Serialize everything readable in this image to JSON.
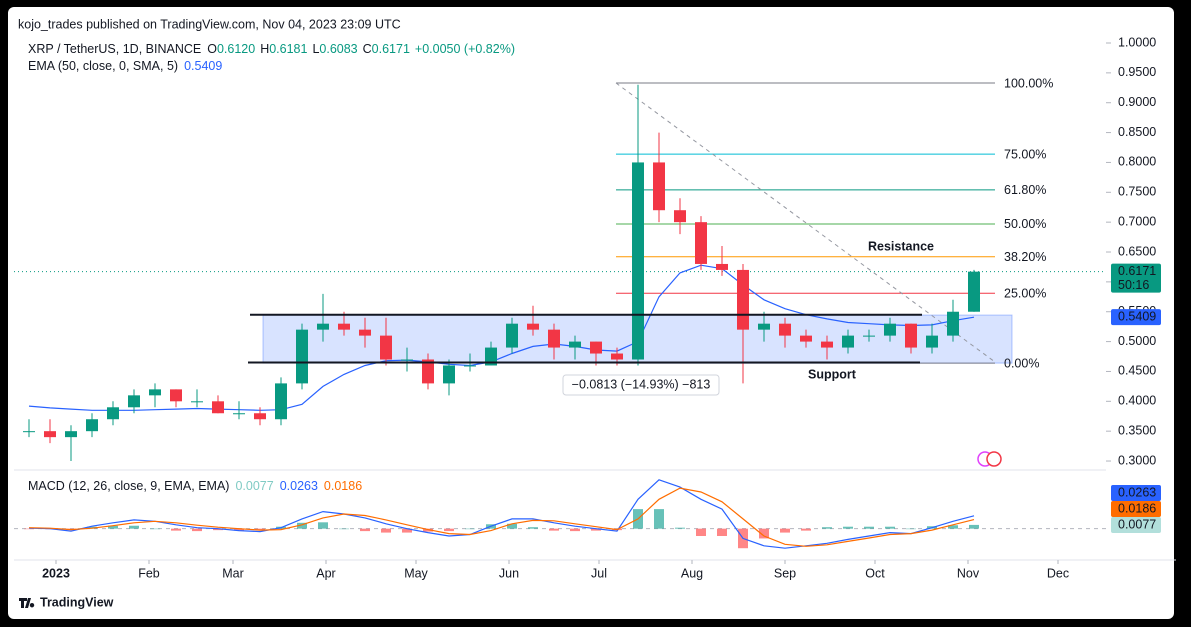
{
  "header": {
    "published": "kojo_trades published on TradingView.com, Nov 04, 2023 23:09 UTC"
  },
  "footer": {
    "brand": "TradingView"
  },
  "chart_data": [
    {
      "type": "candlestick",
      "title": "XRP / TetherUS, 1D, BINANCE",
      "ohlc_legend": [
        {
          "key": "O",
          "value": "0.6120"
        },
        {
          "key": "H",
          "value": "0.6181"
        },
        {
          "key": "L",
          "value": "0.6083"
        },
        {
          "key": "C",
          "value": "0.6171"
        }
      ],
      "change": "+0.0050 (+0.82%)",
      "x": [
        -9,
        -2,
        5,
        12,
        19,
        26,
        33,
        40,
        47,
        54,
        61,
        68,
        75,
        82,
        89,
        96,
        103,
        110,
        117,
        124,
        131,
        138,
        145,
        152,
        159,
        166,
        173,
        180,
        187,
        194,
        201,
        208,
        215,
        222,
        229,
        236,
        243,
        250,
        257,
        264,
        271,
        278,
        285,
        292,
        299,
        306
      ],
      "open": [
        0.35,
        0.35,
        0.34,
        0.35,
        0.37,
        0.39,
        0.41,
        0.42,
        0.4,
        0.4,
        0.38,
        0.38,
        0.37,
        0.43,
        0.52,
        0.53,
        0.52,
        0.51,
        0.47,
        0.47,
        0.43,
        0.46,
        0.46,
        0.49,
        0.53,
        0.52,
        0.49,
        0.5,
        0.48,
        0.47,
        0.8,
        0.72,
        0.7,
        0.63,
        0.62,
        0.52,
        0.53,
        0.51,
        0.5,
        0.49,
        0.51,
        0.51,
        0.53,
        0.49,
        0.51,
        0.55
      ],
      "high": [
        0.37,
        0.37,
        0.36,
        0.38,
        0.4,
        0.42,
        0.43,
        0.42,
        0.42,
        0.41,
        0.4,
        0.39,
        0.44,
        0.53,
        0.58,
        0.55,
        0.54,
        0.54,
        0.49,
        0.48,
        0.47,
        0.48,
        0.5,
        0.54,
        0.56,
        0.53,
        0.51,
        0.5,
        0.49,
        0.93,
        0.85,
        0.74,
        0.71,
        0.66,
        0.63,
        0.55,
        0.54,
        0.52,
        0.51,
        0.52,
        0.52,
        0.54,
        0.53,
        0.53,
        0.57,
        0.62
      ],
      "low": [
        0.34,
        0.33,
        0.3,
        0.34,
        0.36,
        0.38,
        0.39,
        0.39,
        0.39,
        0.38,
        0.37,
        0.36,
        0.36,
        0.42,
        0.5,
        0.51,
        0.49,
        0.46,
        0.45,
        0.42,
        0.41,
        0.45,
        0.46,
        0.48,
        0.51,
        0.47,
        0.47,
        0.46,
        0.46,
        0.46,
        0.7,
        0.68,
        0.62,
        0.61,
        0.43,
        0.5,
        0.49,
        0.49,
        0.47,
        0.48,
        0.5,
        0.5,
        0.48,
        0.48,
        0.5,
        0.55
      ],
      "close": [
        0.35,
        0.34,
        0.35,
        0.37,
        0.39,
        0.41,
        0.42,
        0.4,
        0.4,
        0.38,
        0.38,
        0.37,
        0.43,
        0.52,
        0.53,
        0.52,
        0.51,
        0.47,
        0.47,
        0.43,
        0.46,
        0.46,
        0.49,
        0.53,
        0.52,
        0.49,
        0.5,
        0.48,
        0.47,
        0.8,
        0.72,
        0.7,
        0.63,
        0.62,
        0.52,
        0.53,
        0.51,
        0.5,
        0.49,
        0.51,
        0.51,
        0.53,
        0.49,
        0.51,
        0.55,
        0.6171
      ],
      "color_up": "#089981",
      "color_down": "#f23645",
      "ema": {
        "title": "EMA (50, close, 0, SMA, 5)",
        "value_label": "0.5409",
        "value": 0.5409,
        "color": "#2962ff",
        "values": [
          0.392,
          0.389,
          0.387,
          0.385,
          0.385,
          0.385,
          0.386,
          0.387,
          0.388,
          0.387,
          0.386,
          0.385,
          0.386,
          0.395,
          0.425,
          0.445,
          0.46,
          0.468,
          0.469,
          0.466,
          0.462,
          0.46,
          0.466,
          0.48,
          0.492,
          0.496,
          0.492,
          0.486,
          0.484,
          0.5,
          0.575,
          0.615,
          0.628,
          0.622,
          0.595,
          0.57,
          0.555,
          0.545,
          0.538,
          0.532,
          0.53,
          0.528,
          0.527,
          0.528,
          0.535,
          0.5409
        ]
      },
      "last_price": {
        "value": 0.6171,
        "label": "0.6171",
        "countdown": "50:16"
      },
      "fib_levels": [
        {
          "label": "100.00%",
          "value": 0.933,
          "color": "#787b86"
        },
        {
          "label": "75.00%",
          "value": 0.814,
          "color": "#00bcd4"
        },
        {
          "label": "61.80%",
          "value": 0.754,
          "color": "#089981"
        },
        {
          "label": "50.00%",
          "value": 0.697,
          "color": "#4caf50"
        },
        {
          "label": "38.20%",
          "value": 0.642,
          "color": "#ff9800"
        },
        {
          "label": "25.00%",
          "value": 0.581,
          "color": "#f23645"
        },
        {
          "label": "0.00%",
          "value": 0.464,
          "color": "#787b86"
        }
      ],
      "zone": [
        0.464,
        0.5444
      ],
      "levels": [
        {
          "label": "Resistance",
          "value": 0.545,
          "color": "#f23645"
        },
        {
          "label": "Support",
          "value": 0.465,
          "color": "#22ab45"
        }
      ],
      "measurement": "−0.0813 (−14.93%) −813",
      "xlim": [
        -14,
        350
      ],
      "xticks": [
        {
          "value": 0,
          "label": "2023"
        },
        {
          "value": 31,
          "label": "Feb"
        },
        {
          "value": 59,
          "label": "Mar"
        },
        {
          "value": 90,
          "label": "Apr"
        },
        {
          "value": 120,
          "label": "May"
        },
        {
          "value": 151,
          "label": "Jun"
        },
        {
          "value": 181,
          "label": "Jul"
        },
        {
          "value": 212,
          "label": "Aug"
        },
        {
          "value": 243,
          "label": "Sep"
        },
        {
          "value": 273,
          "label": "Oct"
        },
        {
          "value": 304,
          "label": "Nov"
        },
        {
          "value": 334,
          "label": "Dec"
        }
      ],
      "ylim": [
        0.29,
        1.0
      ],
      "yticks": [
        {
          "value": 0.3,
          "label": "0.3000"
        },
        {
          "value": 0.35,
          "label": "0.3500"
        },
        {
          "value": 0.4,
          "label": "0.4000"
        },
        {
          "value": 0.45,
          "label": "0.4500"
        },
        {
          "value": 0.5,
          "label": "0.5000"
        },
        {
          "value": 0.55,
          "label": "0.5500"
        },
        {
          "value": 0.6,
          "label": "0.6000"
        },
        {
          "value": 0.65,
          "label": "0.6500"
        },
        {
          "value": 0.7,
          "label": "0.7000"
        },
        {
          "value": 0.75,
          "label": "0.7500"
        },
        {
          "value": 0.8,
          "label": "0.8000"
        },
        {
          "value": 0.85,
          "label": "0.8500"
        },
        {
          "value": 0.9,
          "label": "0.9000"
        },
        {
          "value": 0.95,
          "label": "0.9500"
        },
        {
          "value": 1.0,
          "label": "1.0000"
        }
      ]
    },
    {
      "type": "macd",
      "title": "MACD (12, 26, close, 9, EMA, EMA)",
      "x": [
        -9,
        -2,
        5,
        12,
        19,
        26,
        33,
        40,
        47,
        54,
        61,
        68,
        75,
        82,
        89,
        96,
        103,
        110,
        117,
        124,
        131,
        138,
        145,
        152,
        159,
        166,
        173,
        180,
        187,
        194,
        201,
        208,
        215,
        222,
        229,
        236,
        243,
        250,
        257,
        264,
        271,
        278,
        285,
        292,
        299,
        306
      ],
      "xlim": [
        -14,
        350
      ],
      "ylim": [
        -0.06,
        0.12
      ],
      "histogram": {
        "color_up": "#26a69a",
        "color_down": "#ff5252",
        "last_label": "0.0077",
        "legend_color": "#80cbc4",
        "values": [
          -0.001,
          -0.001,
          -0.003,
          0.004,
          0.006,
          0.006,
          0,
          -0.004,
          -0.005,
          -0.003,
          -0.004,
          -0.003,
          0.004,
          0.012,
          0.013,
          0,
          -0.005,
          -0.008,
          -0.008,
          -0.006,
          -0.005,
          0,
          0.009,
          0.01,
          0.003,
          -0.004,
          -0.005,
          -0.004,
          -0.003,
          0.04,
          0.04,
          0.002,
          -0.015,
          -0.015,
          -0.04,
          -0.02,
          -0.008,
          -0.004,
          0.003,
          0.004,
          0.004,
          0.004,
          0,
          0.005,
          0.007,
          0.0077
        ]
      },
      "series": [
        {
          "color": "#2962ff",
          "last_label": "0.0263",
          "values": [
            0.001,
            0,
            -0.005,
            0.005,
            0.012,
            0.018,
            0.015,
            0.008,
            0.002,
            0,
            -0.004,
            -0.006,
            0.002,
            0.02,
            0.035,
            0.03,
            0.022,
            0.01,
            0.0,
            -0.008,
            -0.015,
            -0.012,
            0.005,
            0.02,
            0.02,
            0.012,
            0.005,
            0,
            -0.005,
            0.06,
            0.1,
            0.085,
            0.06,
            0.04,
            -0.02,
            -0.035,
            -0.04,
            -0.035,
            -0.03,
            -0.022,
            -0.015,
            -0.008,
            -0.01,
            0.002,
            0.015,
            0.0263
          ]
        },
        {
          "color": "#ff6d00",
          "last_label": "0.0186",
          "values": [
            0.002,
            0.001,
            -0.002,
            0.001,
            0.006,
            0.012,
            0.015,
            0.012,
            0.007,
            0.003,
            0,
            -0.003,
            -0.002,
            0.008,
            0.022,
            0.03,
            0.027,
            0.018,
            0.008,
            -0.002,
            -0.01,
            -0.012,
            -0.004,
            0.01,
            0.017,
            0.016,
            0.01,
            0.004,
            -0.002,
            0.02,
            0.06,
            0.083,
            0.075,
            0.055,
            0.02,
            -0.015,
            -0.032,
            -0.036,
            -0.033,
            -0.026,
            -0.019,
            -0.012,
            -0.01,
            -0.003,
            0.008,
            0.0186
          ]
        }
      ]
    }
  ]
}
